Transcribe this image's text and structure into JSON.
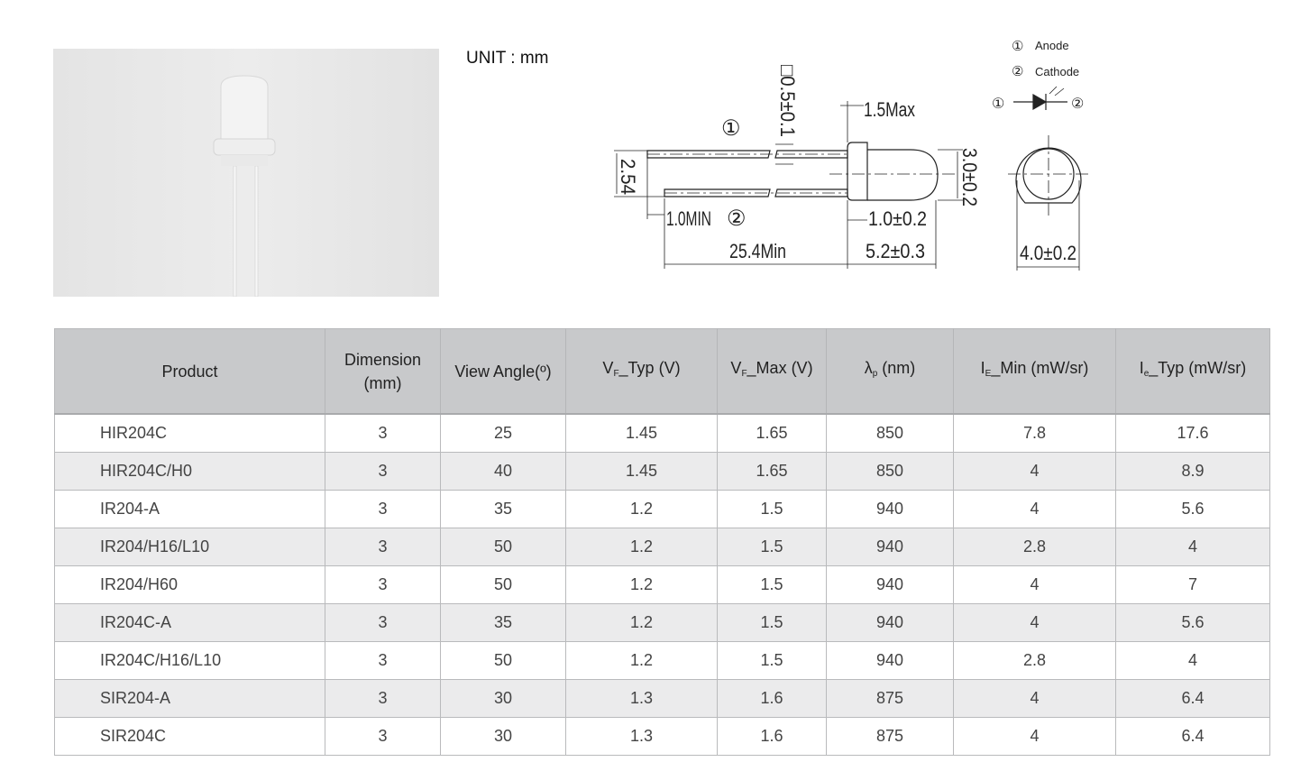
{
  "unit_label": "UNIT : mm",
  "drawing": {
    "lead_width": "□0.5±0.1",
    "flange_max": "1.5Max",
    "pin1_marker": "①",
    "pin2_marker": "②",
    "pitch": "2.54",
    "lead_min": "1.0MIN",
    "flange_thickness": "1.0±0.2",
    "lead_length": "25.4Min",
    "body_length": "5.2±0.3",
    "body_diameter": "3.0±0.2",
    "flange_diameter": "4.0±0.2",
    "legend": [
      {
        "marker": "①",
        "label": "Anode"
      },
      {
        "marker": "②",
        "label": "Cathode"
      }
    ]
  },
  "table": {
    "headers": {
      "product": "Product",
      "dimension": "Dimension",
      "dimension_unit": "(mm)",
      "view_angle": "View Angle(º)",
      "vf_typ_main": "V",
      "vf_typ_sub": "F",
      "vf_typ_rest": "_Typ (V)",
      "vf_max_main": "V",
      "vf_max_sub": "F",
      "vf_max_rest": "_Max (V)",
      "lp_main": "λ",
      "lp_sub": "p",
      "lp_rest": " (nm)",
      "ie_min_main": "I",
      "ie_min_sub": "E",
      "ie_min_rest": "_Min (mW/sr)",
      "ie_typ_main": "I",
      "ie_typ_sub": "e",
      "ie_typ_rest": "_Typ (mW/sr)"
    },
    "rows": [
      [
        "HIR204C",
        "3",
        "25",
        "1.45",
        "1.65",
        "850",
        "7.8",
        "17.6"
      ],
      [
        "HIR204C/H0",
        "3",
        "40",
        "1.45",
        "1.65",
        "850",
        "4",
        "8.9"
      ],
      [
        "IR204-A",
        "3",
        "35",
        "1.2",
        "1.5",
        "940",
        "4",
        "5.6"
      ],
      [
        "IR204/H16/L10",
        "3",
        "50",
        "1.2",
        "1.5",
        "940",
        "2.8",
        "4"
      ],
      [
        "IR204/H60",
        "3",
        "50",
        "1.2",
        "1.5",
        "940",
        "4",
        "7"
      ],
      [
        "IR204C-A",
        "3",
        "35",
        "1.2",
        "1.5",
        "940",
        "4",
        "5.6"
      ],
      [
        "IR204C/H16/L10",
        "3",
        "50",
        "1.2",
        "1.5",
        "940",
        "2.8",
        "4"
      ],
      [
        "SIR204-A",
        "3",
        "30",
        "1.3",
        "1.6",
        "875",
        "4",
        "6.4"
      ],
      [
        "SIR204C",
        "3",
        "30",
        "1.3",
        "1.6",
        "875",
        "4",
        "6.4"
      ]
    ]
  }
}
